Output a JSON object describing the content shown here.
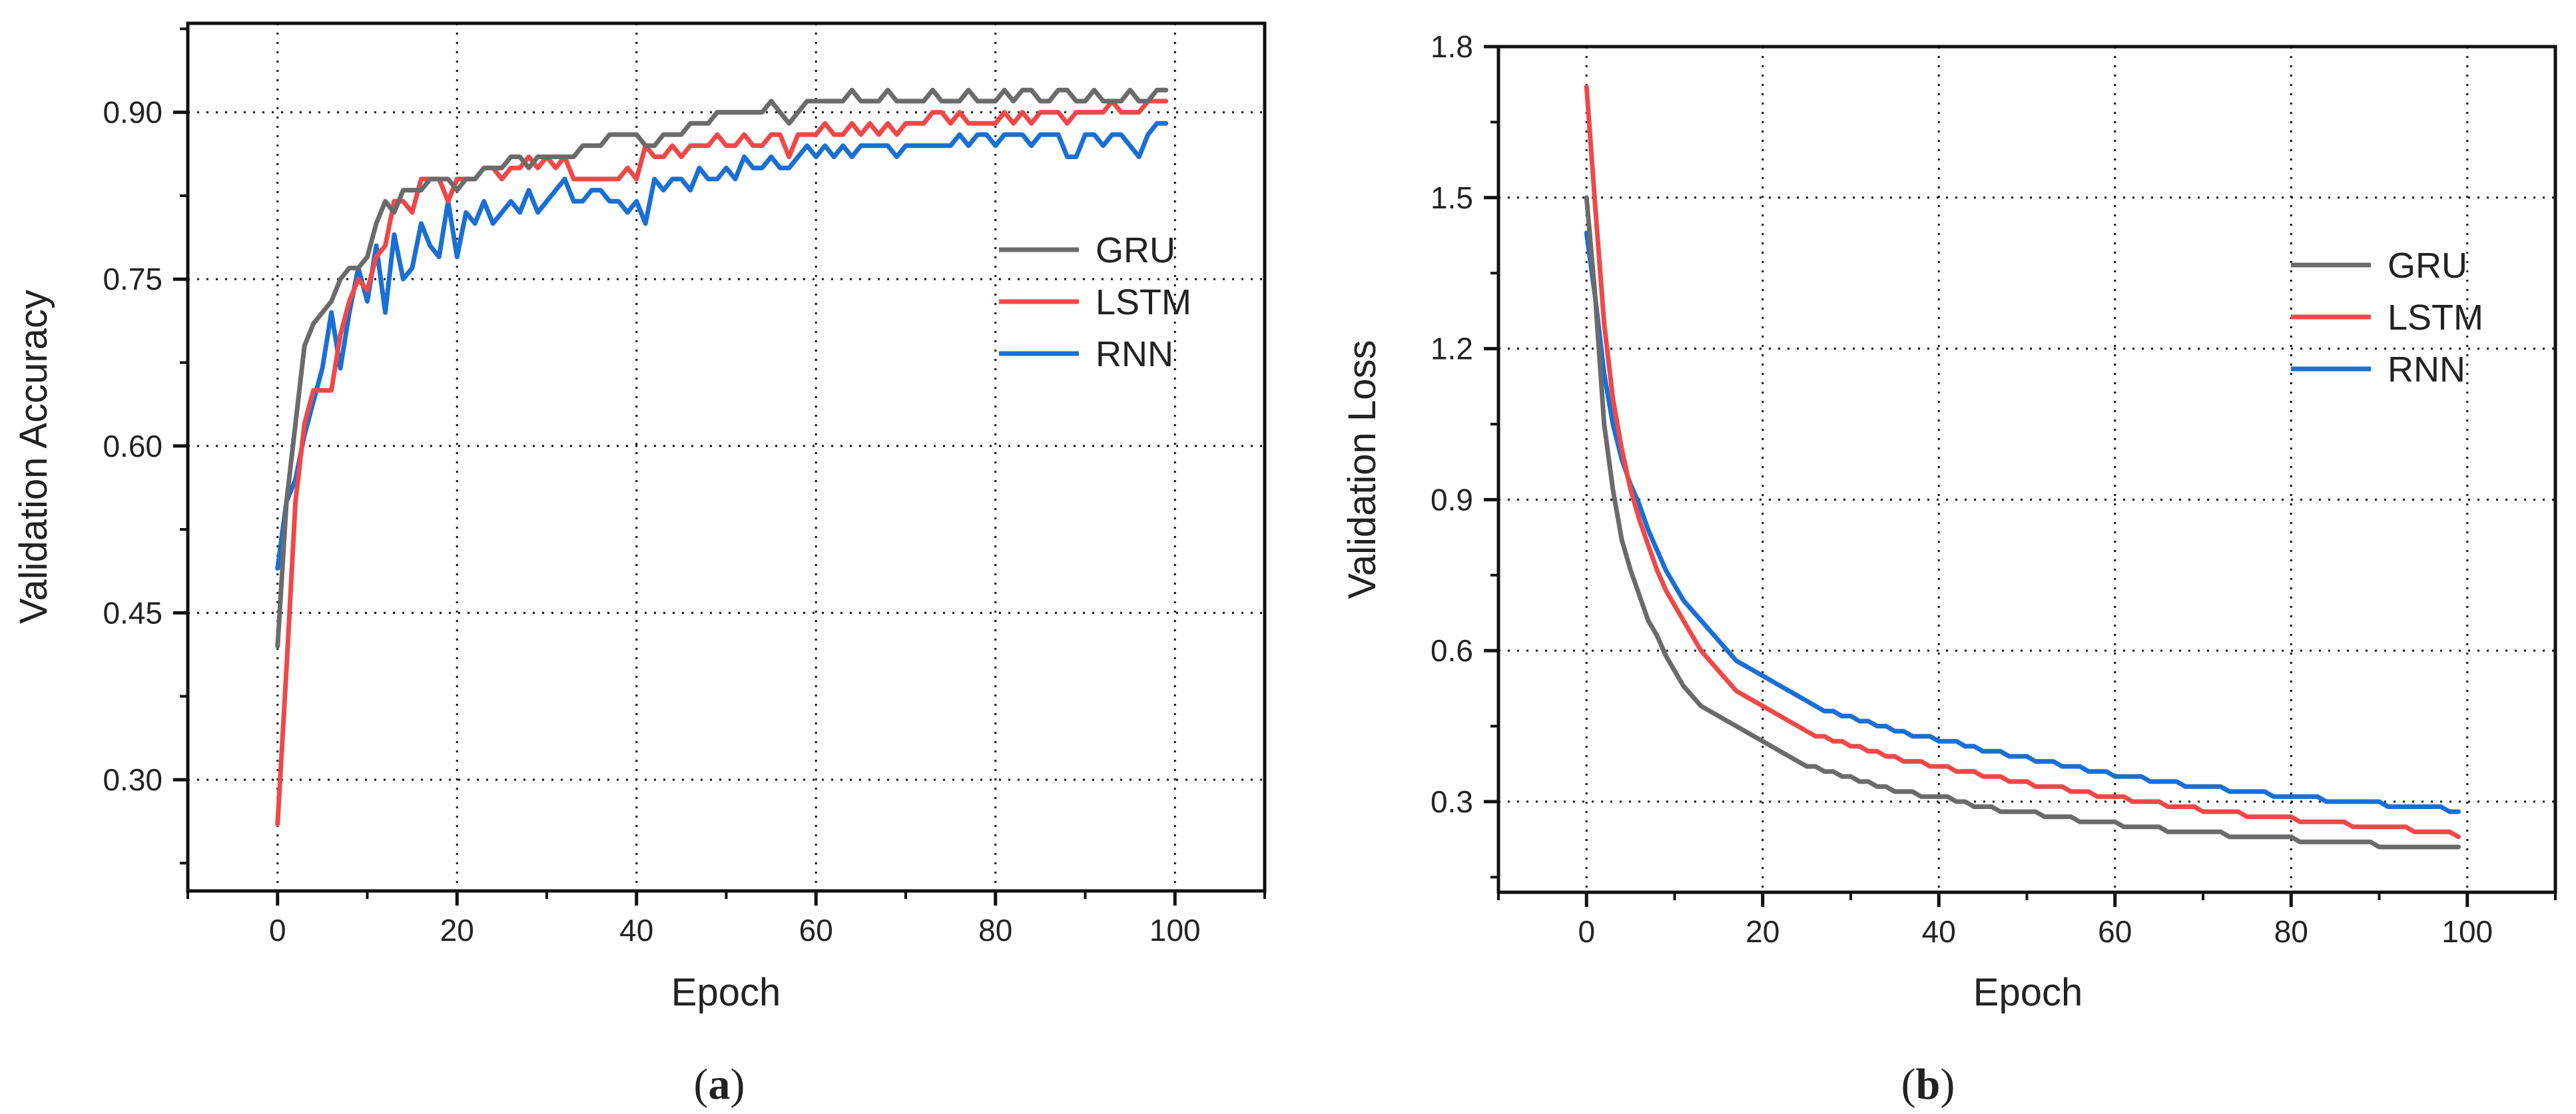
{
  "chart_data": [
    {
      "type": "line",
      "panel_label": "a",
      "title": "",
      "xlabel": "Epoch",
      "ylabel": "Validation Accuracy",
      "xlim": [
        -10,
        110
      ],
      "ylim": [
        0.2,
        0.98
      ],
      "xticks": [
        0,
        20,
        40,
        60,
        80,
        100
      ],
      "yticks": [
        0.3,
        0.45,
        0.6,
        0.75,
        0.9
      ],
      "xtick_labels": [
        "0",
        "20",
        "40",
        "60",
        "80",
        "100"
      ],
      "ytick_labels": [
        "0.30",
        "0.45",
        "0.60",
        "0.75",
        "0.90"
      ],
      "grid": true,
      "legend_position": "center-right",
      "series": [
        {
          "name": "GRU",
          "color": "#6b6b6b",
          "x_start": 0,
          "x_step": 1,
          "values": [
            0.42,
            0.55,
            0.62,
            0.69,
            0.71,
            0.72,
            0.73,
            0.75,
            0.76,
            0.76,
            0.77,
            0.8,
            0.82,
            0.81,
            0.83,
            0.83,
            0.83,
            0.84,
            0.84,
            0.84,
            0.83,
            0.84,
            0.84,
            0.85,
            0.85,
            0.85,
            0.86,
            0.86,
            0.85,
            0.86,
            0.86,
            0.86,
            0.86,
            0.86,
            0.87,
            0.87,
            0.87,
            0.88,
            0.88,
            0.88,
            0.88,
            0.87,
            0.87,
            0.88,
            0.88,
            0.88,
            0.89,
            0.89,
            0.89,
            0.9,
            0.9,
            0.9,
            0.9,
            0.9,
            0.9,
            0.91,
            0.9,
            0.89,
            0.9,
            0.91,
            0.91,
            0.91,
            0.91,
            0.91,
            0.92,
            0.91,
            0.91,
            0.91,
            0.92,
            0.91,
            0.91,
            0.91,
            0.91,
            0.92,
            0.91,
            0.91,
            0.91,
            0.92,
            0.91,
            0.91,
            0.91,
            0.92,
            0.91,
            0.92,
            0.92,
            0.91,
            0.91,
            0.92,
            0.92,
            0.91,
            0.91,
            0.92,
            0.91,
            0.91,
            0.91,
            0.92,
            0.91,
            0.91,
            0.92,
            0.92
          ]
        },
        {
          "name": "LSTM",
          "color": "#f04848",
          "x_start": 0,
          "x_step": 1,
          "values": [
            0.26,
            0.4,
            0.55,
            0.62,
            0.65,
            0.65,
            0.65,
            0.7,
            0.73,
            0.75,
            0.74,
            0.77,
            0.78,
            0.82,
            0.82,
            0.81,
            0.84,
            0.84,
            0.84,
            0.82,
            0.84,
            0.84,
            0.84,
            0.85,
            0.85,
            0.84,
            0.85,
            0.85,
            0.86,
            0.85,
            0.86,
            0.85,
            0.86,
            0.84,
            0.84,
            0.84,
            0.84,
            0.84,
            0.84,
            0.85,
            0.84,
            0.87,
            0.86,
            0.86,
            0.87,
            0.86,
            0.87,
            0.87,
            0.87,
            0.88,
            0.87,
            0.87,
            0.88,
            0.87,
            0.87,
            0.88,
            0.88,
            0.86,
            0.88,
            0.88,
            0.88,
            0.89,
            0.88,
            0.88,
            0.89,
            0.88,
            0.89,
            0.88,
            0.89,
            0.88,
            0.89,
            0.89,
            0.89,
            0.9,
            0.9,
            0.89,
            0.9,
            0.89,
            0.89,
            0.89,
            0.89,
            0.9,
            0.89,
            0.9,
            0.89,
            0.9,
            0.9,
            0.9,
            0.89,
            0.9,
            0.9,
            0.9,
            0.9,
            0.91,
            0.9,
            0.9,
            0.9,
            0.91,
            0.91,
            0.91
          ]
        },
        {
          "name": "RNN",
          "color": "#1a6fd4",
          "x_start": 0,
          "x_step": 1,
          "values": [
            0.49,
            0.55,
            0.57,
            0.61,
            0.64,
            0.67,
            0.72,
            0.67,
            0.72,
            0.76,
            0.73,
            0.78,
            0.72,
            0.79,
            0.75,
            0.76,
            0.8,
            0.78,
            0.77,
            0.82,
            0.77,
            0.81,
            0.8,
            0.82,
            0.8,
            0.81,
            0.82,
            0.81,
            0.83,
            0.81,
            0.82,
            0.83,
            0.84,
            0.82,
            0.82,
            0.83,
            0.83,
            0.82,
            0.82,
            0.81,
            0.82,
            0.8,
            0.84,
            0.83,
            0.84,
            0.84,
            0.83,
            0.85,
            0.84,
            0.84,
            0.85,
            0.84,
            0.86,
            0.85,
            0.85,
            0.86,
            0.85,
            0.85,
            0.86,
            0.87,
            0.86,
            0.87,
            0.86,
            0.87,
            0.86,
            0.87,
            0.87,
            0.87,
            0.87,
            0.86,
            0.87,
            0.87,
            0.87,
            0.87,
            0.87,
            0.87,
            0.88,
            0.87,
            0.88,
            0.88,
            0.87,
            0.88,
            0.88,
            0.88,
            0.87,
            0.88,
            0.88,
            0.88,
            0.86,
            0.86,
            0.88,
            0.88,
            0.87,
            0.88,
            0.88,
            0.87,
            0.86,
            0.88,
            0.89,
            0.89
          ]
        }
      ]
    },
    {
      "type": "line",
      "panel_label": "b",
      "title": "",
      "xlabel": "Epoch",
      "ylabel": "Validation Loss",
      "xlim": [
        -10,
        110
      ],
      "ylim": [
        0.12,
        1.8
      ],
      "xticks": [
        0,
        20,
        40,
        60,
        80,
        100
      ],
      "yticks": [
        0.3,
        0.6,
        0.9,
        1.2,
        1.5,
        1.8
      ],
      "xtick_labels": [
        "0",
        "20",
        "40",
        "60",
        "80",
        "100"
      ],
      "ytick_labels": [
        "0.3",
        "0.6",
        "0.9",
        "1.2",
        "1.5",
        "1.8"
      ],
      "grid": true,
      "legend_position": "upper-right",
      "series": [
        {
          "name": "GRU",
          "color": "#6b6b6b",
          "x_start": 0,
          "x_step": 1,
          "values": [
            1.5,
            1.3,
            1.05,
            0.92,
            0.82,
            0.76,
            0.71,
            0.66,
            0.63,
            0.59,
            0.56,
            0.53,
            0.51,
            0.49,
            0.48,
            0.47,
            0.46,
            0.45,
            0.44,
            0.43,
            0.42,
            0.41,
            0.4,
            0.39,
            0.38,
            0.37,
            0.37,
            0.36,
            0.36,
            0.35,
            0.35,
            0.34,
            0.34,
            0.33,
            0.33,
            0.32,
            0.32,
            0.32,
            0.31,
            0.31,
            0.31,
            0.31,
            0.3,
            0.3,
            0.29,
            0.29,
            0.29,
            0.28,
            0.28,
            0.28,
            0.28,
            0.28,
            0.27,
            0.27,
            0.27,
            0.27,
            0.26,
            0.26,
            0.26,
            0.26,
            0.26,
            0.25,
            0.25,
            0.25,
            0.25,
            0.25,
            0.24,
            0.24,
            0.24,
            0.24,
            0.24,
            0.24,
            0.24,
            0.23,
            0.23,
            0.23,
            0.23,
            0.23,
            0.23,
            0.23,
            0.23,
            0.22,
            0.22,
            0.22,
            0.22,
            0.22,
            0.22,
            0.22,
            0.22,
            0.22,
            0.21,
            0.21,
            0.21,
            0.21,
            0.21,
            0.21,
            0.21,
            0.21,
            0.21,
            0.21
          ]
        },
        {
          "name": "LSTM",
          "color": "#f04848",
          "x_start": 0,
          "x_step": 1,
          "values": [
            1.72,
            1.48,
            1.25,
            1.1,
            1.0,
            0.92,
            0.86,
            0.81,
            0.76,
            0.72,
            0.69,
            0.66,
            0.63,
            0.6,
            0.58,
            0.56,
            0.54,
            0.52,
            0.51,
            0.5,
            0.49,
            0.48,
            0.47,
            0.46,
            0.45,
            0.44,
            0.43,
            0.43,
            0.42,
            0.42,
            0.41,
            0.41,
            0.4,
            0.4,
            0.39,
            0.39,
            0.38,
            0.38,
            0.38,
            0.37,
            0.37,
            0.37,
            0.36,
            0.36,
            0.36,
            0.35,
            0.35,
            0.35,
            0.34,
            0.34,
            0.34,
            0.33,
            0.33,
            0.33,
            0.33,
            0.32,
            0.32,
            0.32,
            0.31,
            0.31,
            0.31,
            0.31,
            0.3,
            0.3,
            0.3,
            0.3,
            0.29,
            0.29,
            0.29,
            0.29,
            0.28,
            0.28,
            0.28,
            0.28,
            0.28,
            0.27,
            0.27,
            0.27,
            0.27,
            0.27,
            0.27,
            0.26,
            0.26,
            0.26,
            0.26,
            0.26,
            0.26,
            0.25,
            0.25,
            0.25,
            0.25,
            0.25,
            0.25,
            0.25,
            0.24,
            0.24,
            0.24,
            0.24,
            0.24,
            0.23
          ]
        },
        {
          "name": "RNN",
          "color": "#1a6fd4",
          "x_start": 0,
          "x_step": 1,
          "values": [
            1.43,
            1.3,
            1.15,
            1.05,
            0.98,
            0.93,
            0.89,
            0.84,
            0.8,
            0.76,
            0.73,
            0.7,
            0.68,
            0.66,
            0.64,
            0.62,
            0.6,
            0.58,
            0.57,
            0.56,
            0.55,
            0.54,
            0.53,
            0.52,
            0.51,
            0.5,
            0.49,
            0.48,
            0.48,
            0.47,
            0.47,
            0.46,
            0.46,
            0.45,
            0.45,
            0.44,
            0.44,
            0.43,
            0.43,
            0.43,
            0.42,
            0.42,
            0.42,
            0.41,
            0.41,
            0.4,
            0.4,
            0.4,
            0.39,
            0.39,
            0.39,
            0.38,
            0.38,
            0.38,
            0.37,
            0.37,
            0.37,
            0.36,
            0.36,
            0.36,
            0.35,
            0.35,
            0.35,
            0.35,
            0.34,
            0.34,
            0.34,
            0.34,
            0.33,
            0.33,
            0.33,
            0.33,
            0.33,
            0.32,
            0.32,
            0.32,
            0.32,
            0.32,
            0.31,
            0.31,
            0.31,
            0.31,
            0.31,
            0.31,
            0.3,
            0.3,
            0.3,
            0.3,
            0.3,
            0.3,
            0.3,
            0.29,
            0.29,
            0.29,
            0.29,
            0.29,
            0.29,
            0.29,
            0.28,
            0.28
          ]
        }
      ]
    }
  ]
}
